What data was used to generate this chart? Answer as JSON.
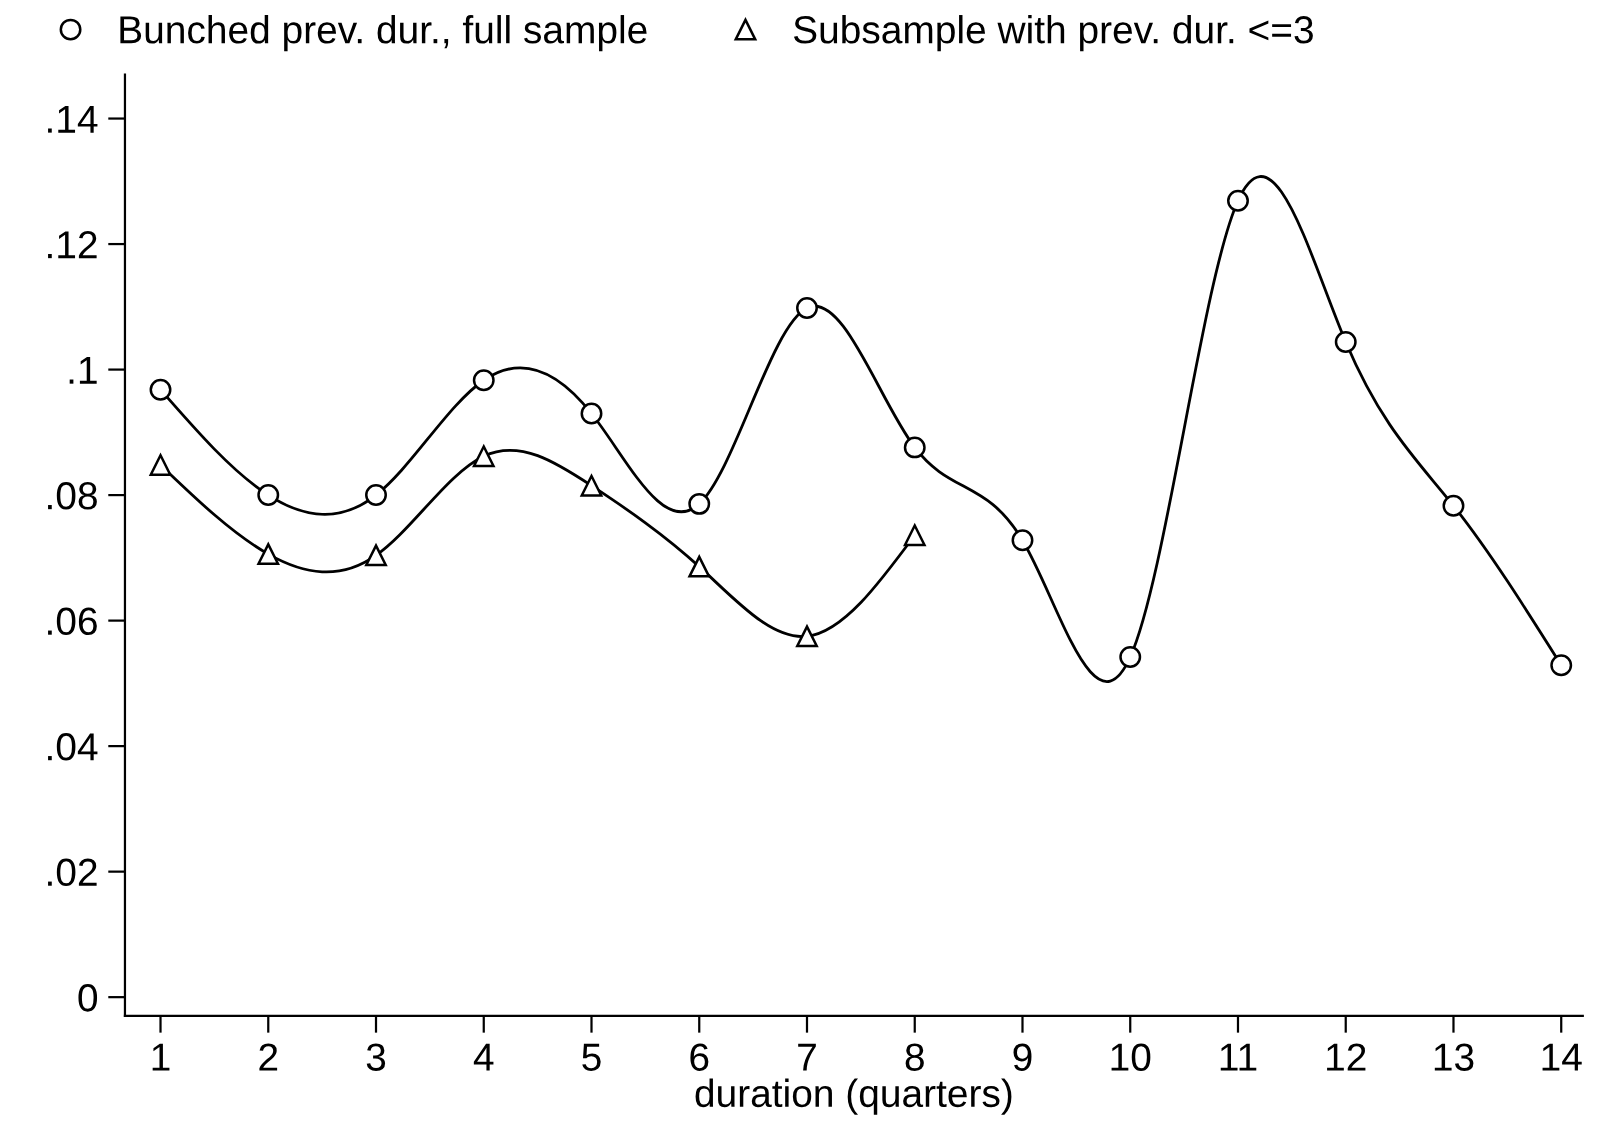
{
  "chart_data": {
    "type": "line",
    "xlabel": "duration (quarters)",
    "x": [
      1,
      2,
      3,
      4,
      5,
      6,
      7,
      8,
      9,
      10,
      11,
      12,
      13,
      14
    ],
    "series": [
      {
        "name": "Bunched prev. dur., full sample",
        "color": "#000000",
        "marker": "circle",
        "values": [
          0.0968,
          0.08,
          0.08,
          0.0983,
          0.093,
          0.0786,
          0.1098,
          0.0876,
          0.0728,
          0.0542,
          0.1269,
          0.1044,
          0.0783,
          0.0529
        ]
      },
      {
        "name": "Subsample with prev. dur. <=3",
        "color": "#000000",
        "marker": "triangle",
        "values": [
          0.0848,
          0.0706,
          0.0704,
          0.0862,
          0.0815,
          0.0686,
          0.0575,
          0.0736,
          null,
          null,
          null,
          null,
          null,
          null
        ]
      }
    ],
    "xlim": [
      0.67,
      14.2
    ],
    "ylim": [
      -0.003,
      0.147
    ],
    "xticks": [
      1,
      2,
      3,
      4,
      5,
      6,
      7,
      8,
      9,
      10,
      11,
      12,
      13,
      14
    ],
    "yticks": [
      {
        "value": 0,
        "label": "0"
      },
      {
        "value": 0.02,
        "label": ".02"
      },
      {
        "value": 0.04,
        "label": ".04"
      },
      {
        "value": 0.06,
        "label": ".06"
      },
      {
        "value": 0.08,
        "label": ".08"
      },
      {
        "value": 0.1,
        "label": ".1"
      },
      {
        "value": 0.12,
        "label": ".12"
      },
      {
        "value": 0.14,
        "label": ".14"
      }
    ],
    "grid": false,
    "legend": "top",
    "line_style": "solid"
  }
}
